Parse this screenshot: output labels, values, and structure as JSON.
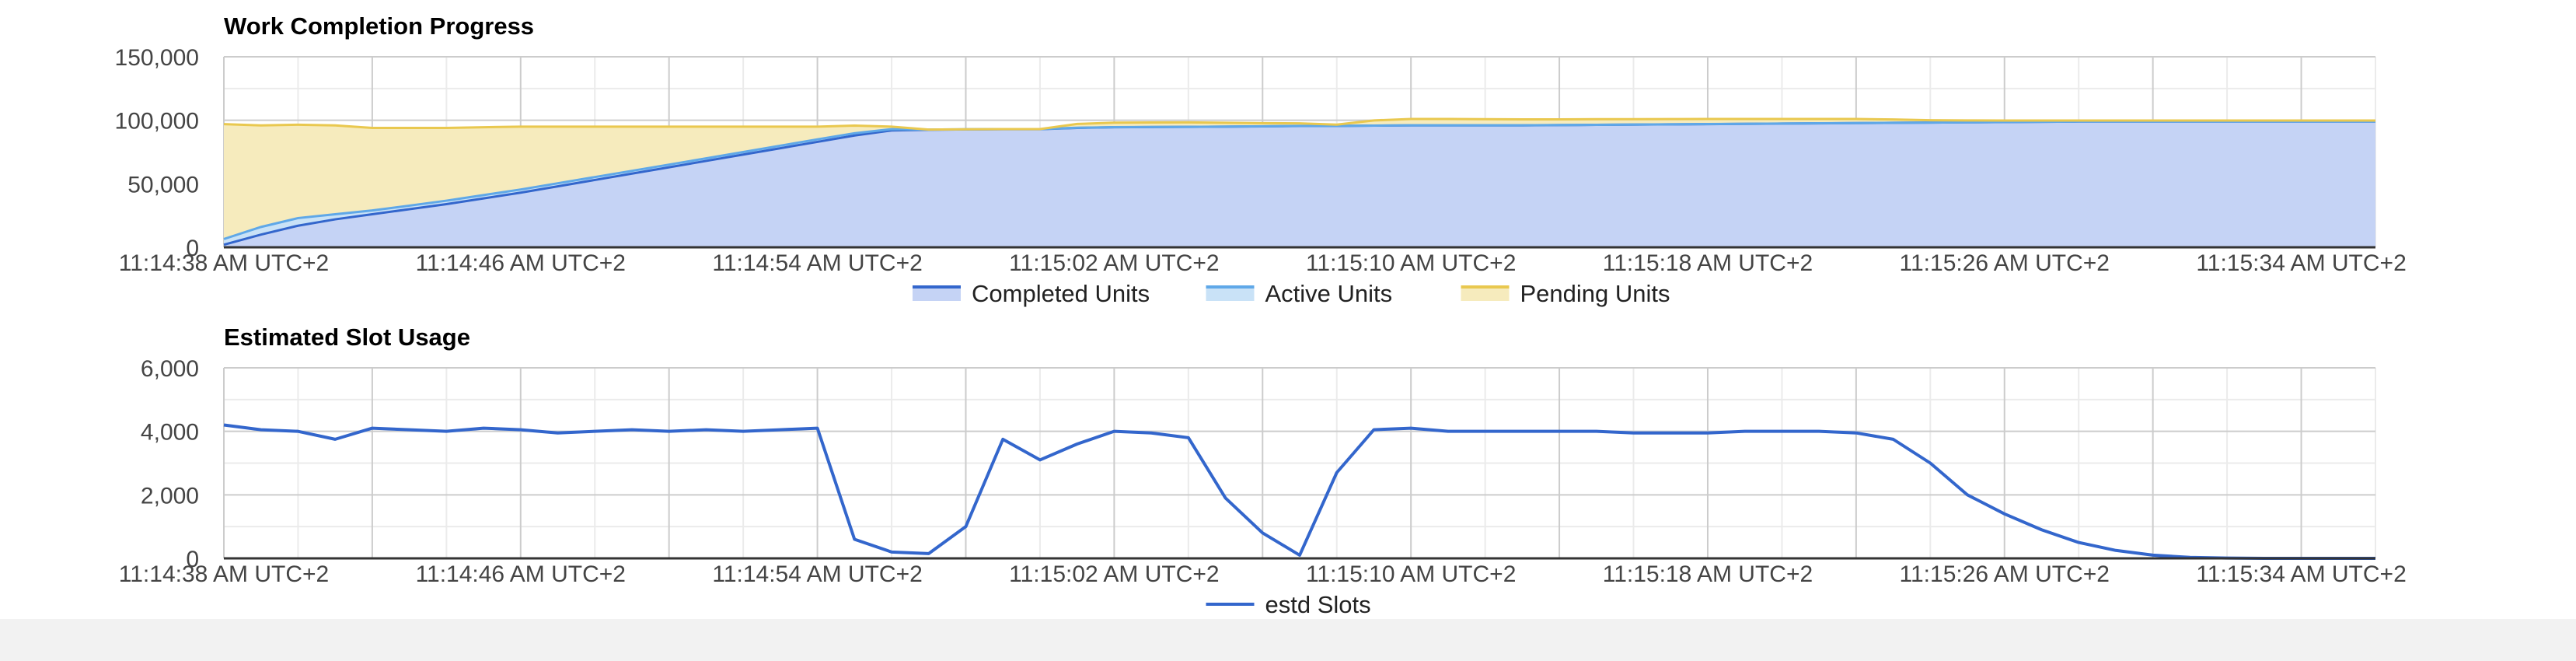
{
  "chart_data": [
    {
      "type": "area",
      "title": "Work Completion Progress",
      "xlabel": "",
      "ylabel": "",
      "ylim": [
        0,
        150000
      ],
      "y_ticks": [
        "0",
        "50,000",
        "100,000",
        "150,000"
      ],
      "x_ticks": [
        "11:14:38 AM UTC+2",
        "11:14:46 AM UTC+2",
        "11:14:54 AM UTC+2",
        "11:15:02 AM UTC+2",
        "11:15:10 AM UTC+2",
        "11:15:18 AM UTC+2",
        "11:15:26 AM UTC+2",
        "11:15:34 AM UTC+2"
      ],
      "grid": true,
      "legend_position": "bottom",
      "x_seconds": [
        0,
        1,
        2,
        3,
        4,
        5,
        6,
        7,
        8,
        9,
        10,
        11,
        12,
        13,
        14,
        15,
        16,
        17,
        18,
        19,
        20,
        21,
        22,
        23,
        24,
        25,
        26,
        27,
        28,
        29,
        30,
        31,
        32,
        33,
        34,
        35,
        36,
        37,
        38,
        39,
        40,
        41,
        42,
        43,
        44,
        45,
        46,
        47,
        48,
        49,
        50,
        51,
        52,
        53,
        54,
        55,
        56,
        57,
        58
      ],
      "series": [
        {
          "name": "Completed Units",
          "color": "#3366cc",
          "values": [
            2000,
            10000,
            17000,
            22000,
            26000,
            30000,
            34000,
            38500,
            43000,
            48000,
            53000,
            58000,
            63000,
            68000,
            73000,
            78000,
            83000,
            88000,
            92000,
            92500,
            92800,
            93000,
            93000,
            94000,
            94500,
            94700,
            94800,
            95000,
            95200,
            95500,
            95500,
            95800,
            96000,
            96000,
            96000,
            96000,
            96200,
            96400,
            96600,
            96800,
            97000,
            97200,
            97400,
            97600,
            97800,
            98000,
            98200,
            98400,
            98600,
            98800,
            99000,
            99000,
            99000,
            99000,
            99000,
            99000,
            99000,
            99000,
            99000
          ]
        },
        {
          "name": "Active Units",
          "color": "#5fa8e8",
          "values": [
            4500,
            6000,
            6000,
            4000,
            3000,
            2800,
            2700,
            2600,
            2500,
            2400,
            2300,
            2200,
            2100,
            2000,
            2000,
            2000,
            2000,
            1800,
            1000,
            200,
            100,
            50,
            50,
            100,
            80,
            50,
            50,
            50,
            50,
            50,
            50,
            50,
            50,
            50,
            50,
            50,
            40,
            40,
            30,
            30,
            30,
            30,
            30,
            20,
            20,
            20,
            20,
            10,
            10,
            10,
            10,
            0,
            0,
            0,
            0,
            0,
            0,
            0,
            0
          ]
        },
        {
          "name": "Pending Units",
          "color": "#e9c84f",
          "values": [
            90500,
            80000,
            73500,
            70000,
            65000,
            61200,
            57300,
            53400,
            49500,
            44600,
            39700,
            34800,
            29900,
            25000,
            20000,
            15000,
            10000,
            6000,
            2000,
            0,
            0,
            0,
            0,
            3000,
            3500,
            3500,
            3500,
            3000,
            2500,
            2000,
            1000,
            4000,
            5000,
            5000,
            4800,
            4700,
            4500,
            4400,
            4200,
            4100,
            4000,
            3800,
            3600,
            3400,
            3200,
            2600,
            1800,
            1500,
            1200,
            1000,
            800,
            800,
            800,
            800,
            800,
            800,
            800,
            800,
            800
          ]
        }
      ]
    },
    {
      "type": "line",
      "title": "Estimated Slot Usage",
      "xlabel": "",
      "ylabel": "",
      "ylim": [
        0,
        6000
      ],
      "y_ticks": [
        "0",
        "2,000",
        "4,000",
        "6,000"
      ],
      "x_ticks": [
        "11:14:38 AM UTC+2",
        "11:14:46 AM UTC+2",
        "11:14:54 AM UTC+2",
        "11:15:02 AM UTC+2",
        "11:15:10 AM UTC+2",
        "11:15:18 AM UTC+2",
        "11:15:26 AM UTC+2",
        "11:15:34 AM UTC+2"
      ],
      "grid": true,
      "legend_position": "bottom",
      "x_seconds": [
        0,
        1,
        2,
        3,
        4,
        5,
        6,
        7,
        8,
        9,
        10,
        11,
        12,
        13,
        14,
        15,
        16,
        17,
        18,
        19,
        20,
        21,
        22,
        23,
        24,
        25,
        26,
        27,
        28,
        29,
        30,
        31,
        32,
        33,
        34,
        35,
        36,
        37,
        38,
        39,
        40,
        41,
        42,
        43,
        44,
        45,
        46,
        47,
        48,
        49,
        50,
        51,
        52,
        53,
        54,
        55,
        56,
        57,
        58
      ],
      "series": [
        {
          "name": "estd Slots",
          "color": "#3366cc",
          "values": [
            4200,
            4050,
            4000,
            3750,
            4100,
            4050,
            4000,
            4100,
            4050,
            3950,
            4000,
            4050,
            4000,
            4050,
            4000,
            4050,
            4100,
            600,
            200,
            150,
            1000,
            3750,
            3100,
            3600,
            4000,
            3950,
            3800,
            1900,
            800,
            100,
            2700,
            4050,
            4100,
            4000,
            4000,
            4000,
            4000,
            4000,
            3950,
            3950,
            3950,
            4000,
            4000,
            4000,
            3950,
            3750,
            3000,
            2000,
            1400,
            900,
            500,
            250,
            100,
            30,
            10,
            0,
            0,
            0,
            0
          ]
        }
      ]
    }
  ]
}
